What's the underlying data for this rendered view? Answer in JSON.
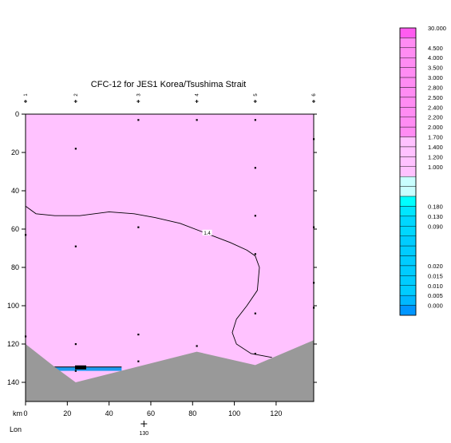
{
  "chart_data": {
    "type": "contour_section",
    "title": "CFC-12 for JES1 Korea/Tsushima Strait",
    "x_axis": {
      "unit_label": "km",
      "ticks": [
        0,
        20,
        40,
        60,
        80,
        100,
        120
      ],
      "range": [
        0,
        138
      ],
      "secondary_label": "Lon",
      "secondary_ticks": [
        {
          "km": 56.7,
          "label": "130"
        }
      ]
    },
    "y_axis": {
      "ticks": [
        0,
        20,
        40,
        60,
        80,
        100,
        120,
        140
      ],
      "range": [
        0,
        150
      ],
      "inverted": true
    },
    "stations": [
      {
        "label": "1",
        "km": 0
      },
      {
        "label": "2",
        "km": 24
      },
      {
        "label": "3",
        "km": 54
      },
      {
        "label": "4",
        "km": 82
      },
      {
        "label": "5",
        "km": 110
      },
      {
        "label": "6",
        "km": 138
      }
    ],
    "samples": [
      {
        "km": 54,
        "depth": 3
      },
      {
        "km": 82,
        "depth": 3
      },
      {
        "km": 110,
        "depth": 3
      },
      {
        "km": 24,
        "depth": 18
      },
      {
        "km": 138,
        "depth": 13
      },
      {
        "km": 110,
        "depth": 28
      },
      {
        "km": 0,
        "depth": 63
      },
      {
        "km": 110,
        "depth": 53
      },
      {
        "km": 54,
        "depth": 59
      },
      {
        "km": 138,
        "depth": 59
      },
      {
        "km": 24,
        "depth": 69
      },
      {
        "km": 110,
        "depth": 73
      },
      {
        "km": 138,
        "depth": 88
      },
      {
        "km": 138,
        "depth": 101
      },
      {
        "km": 110,
        "depth": 104
      },
      {
        "km": 54,
        "depth": 115
      },
      {
        "km": 0,
        "depth": 116
      },
      {
        "km": 24,
        "depth": 120
      },
      {
        "km": 82,
        "depth": 121
      },
      {
        "km": 110,
        "depth": 125
      },
      {
        "km": 54,
        "depth": 129
      },
      {
        "km": 24,
        "depth": 134
      }
    ],
    "contour_line": {
      "value_label": "1.4",
      "points": [
        [
          0,
          48
        ],
        [
          5,
          52
        ],
        [
          14,
          53
        ],
        [
          26,
          53
        ],
        [
          40,
          51
        ],
        [
          52,
          52
        ],
        [
          62,
          54
        ],
        [
          74,
          57
        ],
        [
          86,
          62
        ],
        [
          98,
          67
        ],
        [
          106,
          71
        ],
        [
          110,
          74
        ],
        [
          112,
          80
        ],
        [
          111,
          92
        ],
        [
          106,
          100
        ],
        [
          101,
          107
        ],
        [
          99,
          114
        ],
        [
          101,
          120
        ],
        [
          108,
          125
        ],
        [
          118,
          127
        ]
      ]
    },
    "low_region": {
      "points": [
        [
          4,
          132
        ],
        [
          46,
          132
        ],
        [
          46,
          134
        ],
        [
          10,
          134
        ]
      ],
      "color": "#1e9bf0"
    },
    "terrain": {
      "color": "#999999",
      "points": [
        [
          0,
          120
        ],
        [
          14,
          132
        ],
        [
          24,
          140
        ],
        [
          82,
          124
        ],
        [
          110,
          131
        ],
        [
          138,
          118
        ]
      ]
    },
    "field_color": "#ffc2ff",
    "colorbar": {
      "levels": [
        "30.000",
        "",
        "4.500",
        "4.000",
        "3.500",
        "3.000",
        "2.800",
        "2.500",
        "2.400",
        "2.200",
        "2.000",
        "1.700",
        "1.400",
        "1.200",
        "1.000",
        "",
        "",
        "",
        "0.180",
        "0.130",
        "0.090",
        "",
        "",
        "",
        "0.020",
        "0.015",
        "0.010",
        "0.005",
        "0.000"
      ],
      "colors": [
        "#ff5cf0",
        "#ff8cf3",
        "#ff8cf3",
        "#ff8cf3",
        "#ff8cf3",
        "#ff8cf3",
        "#ff8cf3",
        "#ff8cf3",
        "#ff8cf3",
        "#ff8cf3",
        "#ff8cf3",
        "#ffc2ff",
        "#ffc2ff",
        "#ffc2ff",
        "#ffc2ff",
        "#c8ffff",
        "#c8ffff",
        "#00ffff",
        "#00e6ff",
        "#00d7ff",
        "#00d7ff",
        "#00ccff",
        "#00ccff",
        "#00ccff",
        "#00ccff",
        "#00ccff",
        "#00ccff",
        "#00b8ff",
        "#0096ff"
      ]
    }
  }
}
